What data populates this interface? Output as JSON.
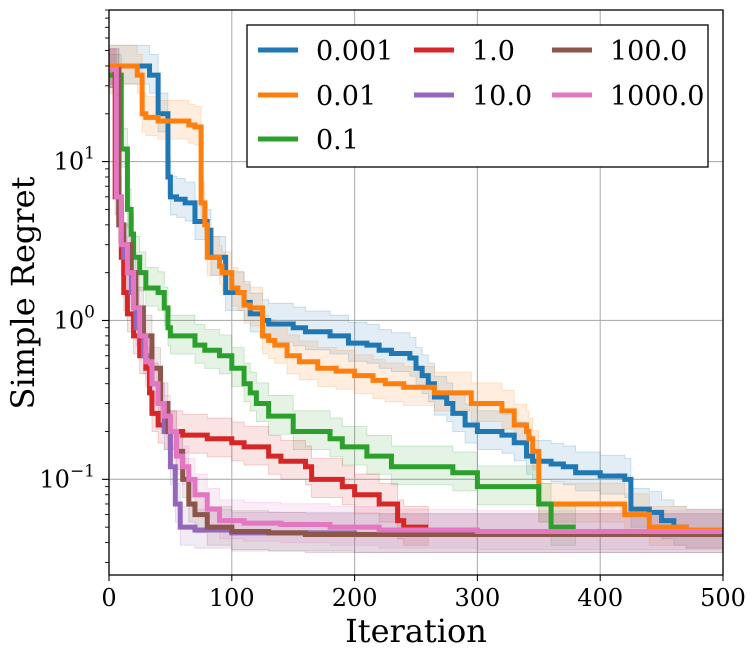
{
  "chart_data": {
    "type": "line",
    "xlabel": "Iteration",
    "ylabel": "Simple Regret",
    "x_ticks": [
      "0",
      "100",
      "200",
      "300",
      "400",
      "500"
    ],
    "y_ticks": [
      {
        "base": "10",
        "exp": "1"
      },
      {
        "base": "10",
        "exp": "0"
      },
      {
        "base": "10",
        "exp": "−1"
      }
    ],
    "xlim": [
      0,
      500
    ],
    "ylim": [
      0.025,
      90
    ],
    "yscale": "log",
    "grid": true,
    "legend_position": "top-right",
    "legend_columns": 3,
    "series": [
      {
        "name": "0.001",
        "color": "#1f77b4",
        "points": [
          [
            0,
            40
          ],
          [
            30,
            40
          ],
          [
            33,
            35
          ],
          [
            38,
            35
          ],
          [
            40,
            20
          ],
          [
            43,
            20
          ],
          [
            48,
            8
          ],
          [
            50,
            6
          ],
          [
            55,
            5.8
          ],
          [
            62,
            5.5
          ],
          [
            70,
            4.2
          ],
          [
            80,
            3.7
          ],
          [
            83,
            2.5
          ],
          [
            92,
            2.5
          ],
          [
            95,
            1.5
          ],
          [
            110,
            1.3
          ],
          [
            115,
            1.1
          ],
          [
            125,
            1.0
          ],
          [
            130,
            0.95
          ],
          [
            150,
            0.9
          ],
          [
            160,
            0.85
          ],
          [
            180,
            0.8
          ],
          [
            195,
            0.72
          ],
          [
            210,
            0.7
          ],
          [
            220,
            0.65
          ],
          [
            230,
            0.62
          ],
          [
            245,
            0.58
          ],
          [
            250,
            0.5
          ],
          [
            255,
            0.45
          ],
          [
            260,
            0.4
          ],
          [
            265,
            0.33
          ],
          [
            275,
            0.3
          ],
          [
            280,
            0.26
          ],
          [
            290,
            0.22
          ],
          [
            300,
            0.2
          ],
          [
            320,
            0.19
          ],
          [
            330,
            0.17
          ],
          [
            340,
            0.14
          ],
          [
            345,
            0.13
          ],
          [
            360,
            0.125
          ],
          [
            370,
            0.12
          ],
          [
            380,
            0.11
          ],
          [
            400,
            0.105
          ],
          [
            420,
            0.1
          ],
          [
            425,
            0.065
          ],
          [
            440,
            0.062
          ],
          [
            450,
            0.055
          ],
          [
            460,
            0.05
          ],
          [
            470,
            0.048
          ],
          [
            500,
            0.048
          ]
        ]
      },
      {
        "name": "0.01",
        "color": "#ff7f0e",
        "points": [
          [
            0,
            40
          ],
          [
            18,
            40
          ],
          [
            23,
            35
          ],
          [
            27,
            20
          ],
          [
            30,
            19
          ],
          [
            40,
            18
          ],
          [
            50,
            18
          ],
          [
            55,
            18
          ],
          [
            65,
            17
          ],
          [
            70,
            16.5
          ],
          [
            75,
            5.5
          ],
          [
            78,
            4
          ],
          [
            80,
            2.5
          ],
          [
            90,
            2.2
          ],
          [
            92,
            2
          ],
          [
            100,
            1.6
          ],
          [
            105,
            1.5
          ],
          [
            110,
            1.25
          ],
          [
            115,
            1.2
          ],
          [
            120,
            1.2
          ],
          [
            125,
            0.8
          ],
          [
            130,
            0.75
          ],
          [
            135,
            0.7
          ],
          [
            145,
            0.6
          ],
          [
            155,
            0.55
          ],
          [
            170,
            0.5
          ],
          [
            185,
            0.48
          ],
          [
            200,
            0.45
          ],
          [
            215,
            0.42
          ],
          [
            225,
            0.4
          ],
          [
            240,
            0.38
          ],
          [
            265,
            0.35
          ],
          [
            295,
            0.3
          ],
          [
            320,
            0.27
          ],
          [
            330,
            0.22
          ],
          [
            340,
            0.2
          ],
          [
            342,
            0.18
          ],
          [
            345,
            0.15
          ],
          [
            350,
            0.07
          ],
          [
            400,
            0.07
          ],
          [
            420,
            0.06
          ],
          [
            440,
            0.05
          ],
          [
            470,
            0.048
          ],
          [
            500,
            0.048
          ]
        ]
      },
      {
        "name": "0.1",
        "color": "#2ca02c",
        "points": [
          [
            0,
            35
          ],
          [
            10,
            12
          ],
          [
            15,
            5
          ],
          [
            18,
            3.5
          ],
          [
            20,
            2.5
          ],
          [
            25,
            2
          ],
          [
            30,
            1.6
          ],
          [
            40,
            1.5
          ],
          [
            45,
            1.2
          ],
          [
            48,
            0.9
          ],
          [
            50,
            0.8
          ],
          [
            60,
            0.8
          ],
          [
            70,
            0.7
          ],
          [
            78,
            0.65
          ],
          [
            90,
            0.6
          ],
          [
            100,
            0.5
          ],
          [
            110,
            0.4
          ],
          [
            115,
            0.35
          ],
          [
            120,
            0.3
          ],
          [
            130,
            0.25
          ],
          [
            150,
            0.2
          ],
          [
            180,
            0.18
          ],
          [
            190,
            0.16
          ],
          [
            210,
            0.14
          ],
          [
            230,
            0.12
          ],
          [
            260,
            0.12
          ],
          [
            280,
            0.11
          ],
          [
            300,
            0.09
          ],
          [
            345,
            0.09
          ],
          [
            350,
            0.07
          ],
          [
            360,
            0.05
          ],
          [
            380,
            0.05
          ]
        ]
      },
      {
        "name": "1.0",
        "color": "#d62728",
        "points": [
          [
            0,
            38
          ],
          [
            5,
            6
          ],
          [
            10,
            2.5
          ],
          [
            12,
            1.5
          ],
          [
            15,
            1.1
          ],
          [
            20,
            0.8
          ],
          [
            25,
            0.6
          ],
          [
            30,
            0.5
          ],
          [
            33,
            0.35
          ],
          [
            35,
            0.26
          ],
          [
            40,
            0.22
          ],
          [
            45,
            0.2
          ],
          [
            55,
            0.2
          ],
          [
            60,
            0.19
          ],
          [
            70,
            0.19
          ],
          [
            80,
            0.18
          ],
          [
            95,
            0.18
          ],
          [
            100,
            0.17
          ],
          [
            110,
            0.16
          ],
          [
            130,
            0.14
          ],
          [
            140,
            0.13
          ],
          [
            160,
            0.12
          ],
          [
            165,
            0.1
          ],
          [
            190,
            0.09
          ],
          [
            200,
            0.08
          ],
          [
            220,
            0.07
          ],
          [
            235,
            0.055
          ],
          [
            240,
            0.05
          ],
          [
            260,
            0.05
          ]
        ]
      },
      {
        "name": "10.0",
        "color": "#9467bd",
        "points": [
          [
            0,
            38
          ],
          [
            8,
            4
          ],
          [
            12,
            2.5
          ],
          [
            18,
            1.5
          ],
          [
            22,
            0.9
          ],
          [
            28,
            0.6
          ],
          [
            35,
            0.4
          ],
          [
            40,
            0.3
          ],
          [
            45,
            0.2
          ],
          [
            50,
            0.12
          ],
          [
            54,
            0.07
          ],
          [
            58,
            0.05
          ],
          [
            70,
            0.048
          ],
          [
            100,
            0.046
          ],
          [
            200,
            0.045
          ],
          [
            300,
            0.045
          ],
          [
            500,
            0.045
          ]
        ]
      },
      {
        "name": "100.0",
        "color": "#8c564b",
        "points": [
          [
            0,
            38
          ],
          [
            8,
            4
          ],
          [
            12,
            3
          ],
          [
            18,
            2
          ],
          [
            22,
            1.2
          ],
          [
            28,
            0.8
          ],
          [
            35,
            0.5
          ],
          [
            42,
            0.3
          ],
          [
            48,
            0.2
          ],
          [
            55,
            0.15
          ],
          [
            60,
            0.1
          ],
          [
            65,
            0.07
          ],
          [
            70,
            0.06
          ],
          [
            80,
            0.05
          ],
          [
            100,
            0.047
          ],
          [
            130,
            0.046
          ],
          [
            160,
            0.045
          ],
          [
            230,
            0.045
          ],
          [
            500,
            0.045
          ]
        ]
      },
      {
        "name": "1000.0",
        "color": "#e377c2",
        "points": [
          [
            0,
            38
          ],
          [
            6,
            6
          ],
          [
            10,
            3
          ],
          [
            15,
            2
          ],
          [
            20,
            1.2
          ],
          [
            25,
            0.8
          ],
          [
            30,
            0.55
          ],
          [
            35,
            0.4
          ],
          [
            40,
            0.3
          ],
          [
            45,
            0.25
          ],
          [
            50,
            0.2
          ],
          [
            55,
            0.14
          ],
          [
            60,
            0.12
          ],
          [
            65,
            0.1
          ],
          [
            70,
            0.08
          ],
          [
            80,
            0.065
          ],
          [
            90,
            0.055
          ],
          [
            110,
            0.053
          ],
          [
            140,
            0.052
          ],
          [
            180,
            0.05
          ],
          [
            220,
            0.048
          ],
          [
            300,
            0.047
          ],
          [
            500,
            0.047
          ]
        ]
      }
    ]
  }
}
